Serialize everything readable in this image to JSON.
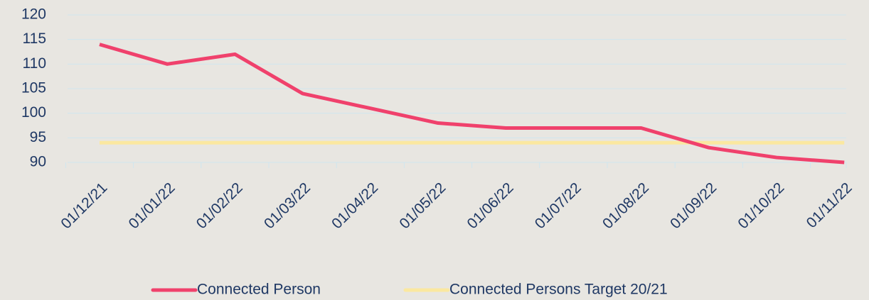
{
  "chart_data": {
    "type": "line",
    "categories": [
      "01/12/21",
      "01/01/22",
      "01/02/22",
      "01/03/22",
      "01/04/22",
      "01/05/22",
      "01/06/22",
      "01/07/22",
      "01/08/22",
      "01/09/22",
      "01/10/22",
      "01/11/22"
    ],
    "series": [
      {
        "name": "Connected Person",
        "color": "#f0416c",
        "values": [
          114,
          110,
          112,
          104,
          101,
          98,
          97,
          97,
          97,
          93,
          91,
          90
        ]
      },
      {
        "name": "Connected Persons Target 20/21",
        "color": "#fbe8a0",
        "values": [
          94,
          94,
          94,
          94,
          94,
          94,
          94,
          94,
          94,
          94,
          94,
          94
        ]
      }
    ],
    "ylim": [
      90,
      120
    ],
    "yticks": [
      90,
      95,
      100,
      105,
      110,
      115,
      120
    ],
    "grid": true
  }
}
